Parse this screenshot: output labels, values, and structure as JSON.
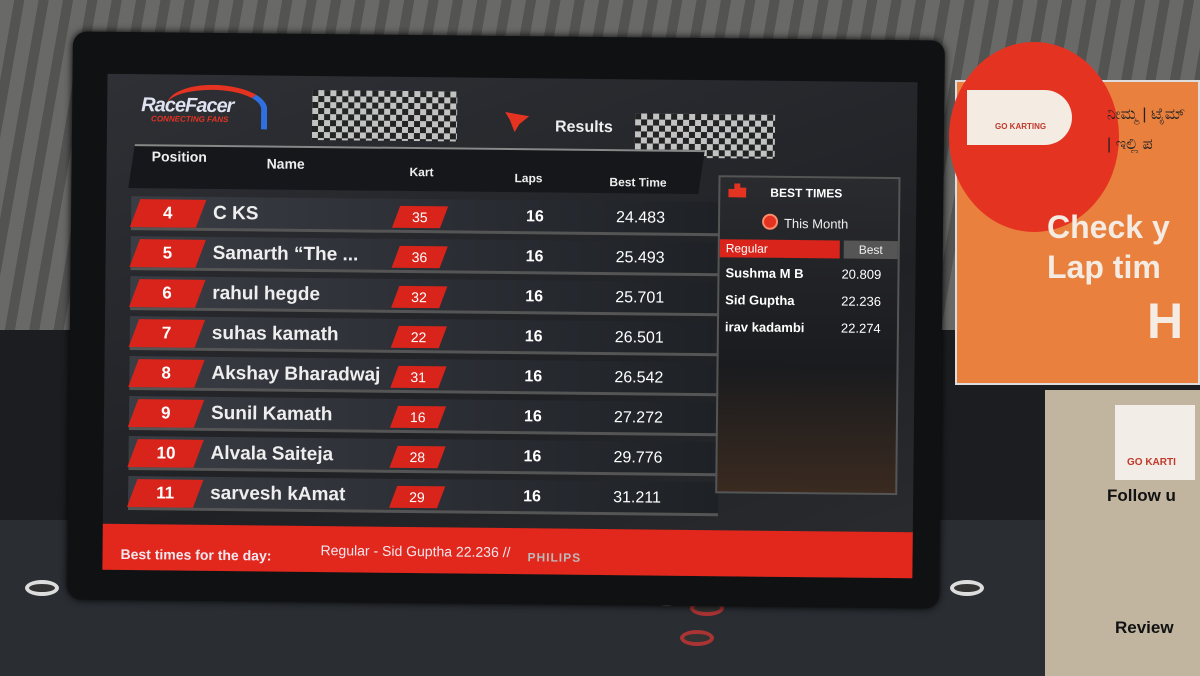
{
  "tv_brand": "PHILIPS",
  "header": {
    "logo_title": "RaceFacer",
    "logo_tagline": "CONNECTING FANS",
    "section": "Results"
  },
  "columns": {
    "position": "Position",
    "name": "Name",
    "kart": "Kart",
    "laps": "Laps",
    "best_time": "Best Time"
  },
  "rows": [
    {
      "pos": "4",
      "name": "C KS",
      "kart": "35",
      "laps": "16",
      "time": "24.483"
    },
    {
      "pos": "5",
      "name": "Samarth “The ...",
      "kart": "36",
      "laps": "16",
      "time": "25.493"
    },
    {
      "pos": "6",
      "name": "rahul hegde",
      "kart": "32",
      "laps": "16",
      "time": "25.701"
    },
    {
      "pos": "7",
      "name": "suhas kamath",
      "kart": "22",
      "laps": "16",
      "time": "26.501"
    },
    {
      "pos": "8",
      "name": "Akshay Bharadwaj",
      "kart": "31",
      "laps": "16",
      "time": "26.542"
    },
    {
      "pos": "9",
      "name": "Sunil Kamath",
      "kart": "16",
      "laps": "16",
      "time": "27.272"
    },
    {
      "pos": "10",
      "name": "Alvala Saiteja",
      "kart": "28",
      "laps": "16",
      "time": "29.776"
    },
    {
      "pos": "11",
      "name": "sarvesh kAmat",
      "kart": "29",
      "laps": "16",
      "time": "31.211"
    }
  ],
  "best_times": {
    "title": "BEST TIMES",
    "period": "This Month",
    "category": "Regular",
    "best_label": "Best",
    "entries": [
      {
        "name": "Sushma M B",
        "time": "20.809"
      },
      {
        "name": "Sid Guptha",
        "time": "22.236"
      },
      {
        "name": "irav kadambi",
        "time": "22.274"
      }
    ]
  },
  "footer": {
    "label": "Best times for the day:",
    "value": "Regular - Sid Guptha 22.236    //"
  },
  "sign_top": {
    "logo": "GO KARTING",
    "kannada": "ನೀಮ್ಮ | ಟೈಮ್ | ಇಲ್ಲಿ ಪ",
    "line1": "Check y",
    "line2": "Lap tim",
    "line3": "H"
  },
  "sign_bottom": {
    "logo": "GO KARTI",
    "follow": "Follow u",
    "review": "Review"
  },
  "colors": {
    "accent_red": "#e2271c",
    "screen_bg": "#1f2125"
  }
}
